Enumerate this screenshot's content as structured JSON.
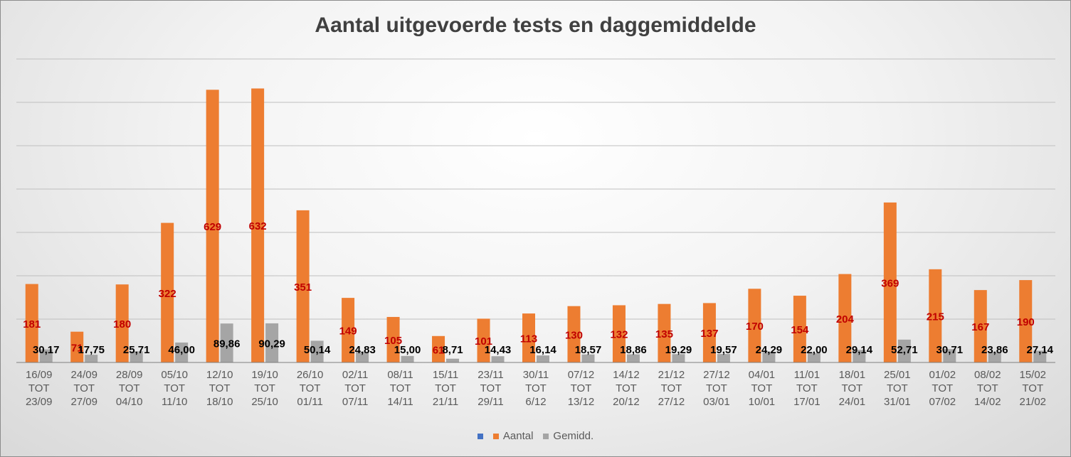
{
  "chart_data": {
    "type": "bar",
    "title": "Aantal uitgevoerde tests en daggemiddelde",
    "xlabel": "",
    "ylabel": "",
    "ylim": [
      0,
      700
    ],
    "grid": true,
    "legend_position": "bottom",
    "categories": [
      [
        "16/09",
        "TOT",
        "23/09"
      ],
      [
        "24/09",
        "TOT",
        "27/09"
      ],
      [
        "28/09",
        "TOT",
        "04/10"
      ],
      [
        "05/10",
        "TOT",
        "11/10"
      ],
      [
        "12/10",
        "TOT",
        "18/10"
      ],
      [
        "19/10",
        "TOT",
        "25/10"
      ],
      [
        "26/10",
        "TOT",
        "01/11"
      ],
      [
        "02/11",
        "TOT",
        "07/11"
      ],
      [
        "08/11",
        "TOT",
        "14/11"
      ],
      [
        "15/11",
        "TOT",
        "21/11"
      ],
      [
        "23/11",
        "TOT",
        "29/11"
      ],
      [
        "30/11",
        "TOT",
        "6/12"
      ],
      [
        "07/12",
        "TOT",
        "13/12"
      ],
      [
        "14/12",
        "TOT",
        "20/12"
      ],
      [
        "21/12",
        "TOT",
        "27/12"
      ],
      [
        "27/12",
        "TOT",
        "03/01"
      ],
      [
        "04/01",
        "TOT",
        "10/01"
      ],
      [
        "11/01",
        "TOT",
        "17/01"
      ],
      [
        "18/01",
        "TOT",
        "24/01"
      ],
      [
        "25/01",
        "TOT",
        "31/01"
      ],
      [
        "01/02",
        "TOT",
        "07/02"
      ],
      [
        "08/02",
        "TOT",
        "14/02"
      ],
      [
        "15/02",
        "TOT",
        "21/02"
      ]
    ],
    "series": [
      {
        "name": "Aantal",
        "color": "#ed7d31",
        "label_color": "#c00000",
        "values": [
          181,
          71,
          180,
          322,
          629,
          632,
          351,
          149,
          105,
          61,
          101,
          113,
          130,
          132,
          135,
          137,
          170,
          154,
          204,
          369,
          215,
          167,
          190
        ],
        "labels": [
          "181",
          "71",
          "180",
          "322",
          "629",
          "632",
          "351",
          "149",
          "105",
          "61",
          "101",
          "113",
          "130",
          "132",
          "135",
          "137",
          "170",
          "154",
          "204",
          "369",
          "215",
          "167",
          "190"
        ]
      },
      {
        "name": "Gemidd.",
        "color": "#a5a5a5",
        "label_color": "#000000",
        "values": [
          30.17,
          17.75,
          25.71,
          46.0,
          89.86,
          90.29,
          50.14,
          24.83,
          15.0,
          8.71,
          14.43,
          16.14,
          18.57,
          18.86,
          19.29,
          19.57,
          24.29,
          22.0,
          29.14,
          52.71,
          30.71,
          23.86,
          27.14
        ],
        "labels": [
          "30,17",
          "17,75",
          "25,71",
          "46,00",
          "89,86",
          "90,29",
          "50,14",
          "24,83",
          "15,00",
          "8,71",
          "14,43",
          "16,14",
          "18,57",
          "18,86",
          "19,29",
          "19,57",
          "24,29",
          "22,00",
          "29,14",
          "52,71",
          "30,71",
          "23,86",
          "27,14"
        ]
      }
    ],
    "legend": [
      {
        "name": "",
        "color": "#4472c4"
      },
      {
        "name": "Aantal",
        "color": "#ed7d31"
      },
      {
        "name": "Gemidd.",
        "color": "#a5a5a5"
      }
    ]
  }
}
